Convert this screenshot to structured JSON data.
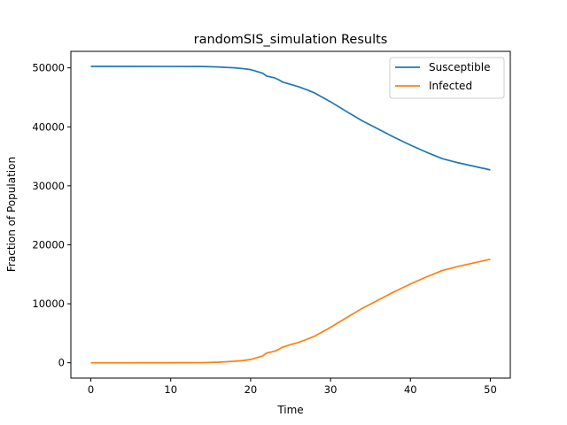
{
  "chart_data": {
    "type": "line",
    "title": "randomSIS_simulation Results",
    "xlabel": "Time",
    "ylabel": "Fraction of Population",
    "xlim": [
      -2.5,
      52.5
    ],
    "ylim": [
      -2600,
      52800
    ],
    "xticks": [
      0,
      10,
      20,
      30,
      40,
      50
    ],
    "xtick_labels": [
      "0",
      "10",
      "20",
      "30",
      "40",
      "50"
    ],
    "yticks": [
      0,
      10000,
      20000,
      30000,
      40000,
      50000
    ],
    "ytick_labels": [
      "0",
      "10000",
      "20000",
      "30000",
      "40000",
      "50000"
    ],
    "grid": false,
    "legend_position": "top-right",
    "series": [
      {
        "name": "Susceptible",
        "color": "#1f77b4",
        "x": [
          0,
          5,
          10,
          14,
          16,
          18,
          19,
          20,
          20.5,
          21,
          21.5,
          22,
          23,
          23.5,
          24,
          25,
          26,
          27,
          28,
          30,
          32,
          34,
          36,
          38,
          40,
          42,
          44,
          46,
          48,
          49,
          50
        ],
        "y": [
          50250,
          50250,
          50240,
          50230,
          50150,
          50000,
          49880,
          49700,
          49500,
          49300,
          49100,
          48600,
          48300,
          48000,
          47600,
          47200,
          46800,
          46300,
          45750,
          44250,
          42600,
          41000,
          39600,
          38200,
          36900,
          35700,
          34600,
          33900,
          33300,
          33000,
          32700
        ]
      },
      {
        "name": "Infected",
        "color": "#ff7f0e",
        "x": [
          0,
          5,
          10,
          14,
          16,
          18,
          19,
          20,
          20.5,
          21,
          21.5,
          22,
          23,
          23.5,
          24,
          25,
          26,
          27,
          28,
          30,
          32,
          34,
          36,
          38,
          40,
          42,
          44,
          46,
          48,
          49,
          50
        ],
        "y": [
          0,
          0,
          10,
          20,
          100,
          250,
          370,
          550,
          750,
          950,
          1150,
          1650,
          1950,
          2250,
          2650,
          3050,
          3450,
          3950,
          4500,
          6000,
          7650,
          9250,
          10650,
          12050,
          13350,
          14550,
          15650,
          16350,
          16950,
          17250,
          17550
        ]
      }
    ]
  }
}
